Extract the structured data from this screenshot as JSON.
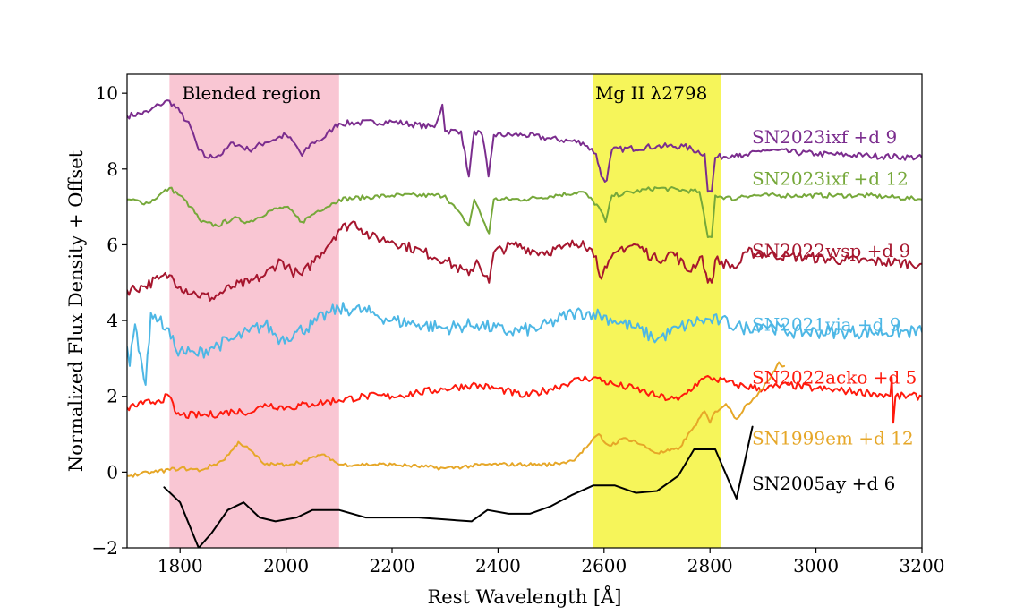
{
  "chart_data": {
    "type": "line",
    "title": "",
    "xlabel": "Rest Wavelength [Å]",
    "ylabel": "Normalized Flux Density + Offset",
    "xlim": [
      1700,
      3200
    ],
    "ylim": [
      -2,
      10.5
    ],
    "xticks": [
      1800,
      2000,
      2200,
      2400,
      2600,
      2800,
      3000,
      3200
    ],
    "yticks": [
      -2,
      0,
      2,
      4,
      6,
      8,
      10
    ],
    "xtick_labels": [
      "1800",
      "2000",
      "2200",
      "2400",
      "2600",
      "2800",
      "3000",
      "3200"
    ],
    "ytick_labels": [
      "−2",
      "0",
      "2",
      "4",
      "6",
      "8",
      "10"
    ],
    "shaded_regions": [
      {
        "name": "blended",
        "x0": 1780,
        "x1": 2100,
        "color": "#f9c6d3",
        "label": "Blended region"
      },
      {
        "name": "mgii",
        "x0": 2580,
        "x1": 2820,
        "color": "#f6f55a",
        "label": "Mg II λ2798"
      }
    ],
    "series": [
      {
        "name": "SN2023ixf +d 9",
        "color": "#7b2d8e",
        "label_y": 8.85,
        "noise": 0.08,
        "points": [
          [
            1700,
            9.4
          ],
          [
            1740,
            9.5
          ],
          [
            1760,
            9.7
          ],
          [
            1780,
            9.8
          ],
          [
            1800,
            9.5
          ],
          [
            1820,
            9.1
          ],
          [
            1835,
            8.5
          ],
          [
            1850,
            8.3
          ],
          [
            1880,
            8.4
          ],
          [
            1900,
            8.7
          ],
          [
            1930,
            8.5
          ],
          [
            1960,
            8.7
          ],
          [
            2000,
            8.9
          ],
          [
            2020,
            8.6
          ],
          [
            2030,
            8.35
          ],
          [
            2050,
            8.7
          ],
          [
            2070,
            8.8
          ],
          [
            2090,
            9.1
          ],
          [
            2100,
            9.2
          ],
          [
            2200,
            9.25
          ],
          [
            2280,
            9.1
          ],
          [
            2295,
            9.7
          ],
          [
            2300,
            9.0
          ],
          [
            2330,
            9.0
          ],
          [
            2345,
            7.8
          ],
          [
            2355,
            9.0
          ],
          [
            2370,
            8.9
          ],
          [
            2382,
            7.8
          ],
          [
            2392,
            8.9
          ],
          [
            2450,
            8.9
          ],
          [
            2500,
            8.8
          ],
          [
            2560,
            8.7
          ],
          [
            2585,
            8.4
          ],
          [
            2595,
            7.8
          ],
          [
            2605,
            7.7
          ],
          [
            2615,
            8.5
          ],
          [
            2700,
            8.6
          ],
          [
            2750,
            8.6
          ],
          [
            2790,
            8.4
          ],
          [
            2796,
            7.4
          ],
          [
            2803,
            7.4
          ],
          [
            2810,
            8.3
          ],
          [
            2850,
            8.4
          ],
          [
            2860,
            8.3
          ],
          [
            2900,
            8.5
          ],
          [
            3000,
            8.4
          ],
          [
            3100,
            8.35
          ],
          [
            3200,
            8.3
          ]
        ]
      },
      {
        "name": "SN2023ixf +d 12",
        "color": "#76a83a",
        "label_y": 7.75,
        "noise": 0.06,
        "points": [
          [
            1700,
            7.2
          ],
          [
            1740,
            7.1
          ],
          [
            1760,
            7.3
          ],
          [
            1780,
            7.5
          ],
          [
            1800,
            7.3
          ],
          [
            1820,
            7.0
          ],
          [
            1840,
            6.6
          ],
          [
            1870,
            6.5
          ],
          [
            1900,
            6.7
          ],
          [
            1930,
            6.6
          ],
          [
            1970,
            6.9
          ],
          [
            2000,
            7.0
          ],
          [
            2030,
            6.6
          ],
          [
            2060,
            6.9
          ],
          [
            2090,
            7.1
          ],
          [
            2100,
            7.2
          ],
          [
            2200,
            7.3
          ],
          [
            2300,
            7.3
          ],
          [
            2345,
            6.5
          ],
          [
            2355,
            7.2
          ],
          [
            2383,
            6.3
          ],
          [
            2392,
            7.2
          ],
          [
            2450,
            7.2
          ],
          [
            2560,
            7.4
          ],
          [
            2590,
            7.0
          ],
          [
            2603,
            6.6
          ],
          [
            2615,
            7.3
          ],
          [
            2700,
            7.5
          ],
          [
            2780,
            7.4
          ],
          [
            2796,
            6.2
          ],
          [
            2803,
            6.2
          ],
          [
            2810,
            7.3
          ],
          [
            2850,
            7.2
          ],
          [
            2860,
            7.3
          ],
          [
            2950,
            7.3
          ],
          [
            3100,
            7.3
          ],
          [
            3200,
            7.2
          ]
        ]
      },
      {
        "name": "SN2022wsp +d 9",
        "color": "#a6162e",
        "label_y": 5.85,
        "noise": 0.14,
        "points": [
          [
            1700,
            4.8
          ],
          [
            1730,
            4.9
          ],
          [
            1760,
            5.1
          ],
          [
            1780,
            5.2
          ],
          [
            1800,
            4.9
          ],
          [
            1830,
            4.7
          ],
          [
            1860,
            4.6
          ],
          [
            1900,
            4.9
          ],
          [
            1930,
            5.0
          ],
          [
            1960,
            5.2
          ],
          [
            1990,
            5.6
          ],
          [
            2010,
            5.3
          ],
          [
            2030,
            5.2
          ],
          [
            2060,
            5.7
          ],
          [
            2090,
            6.2
          ],
          [
            2100,
            6.4
          ],
          [
            2130,
            6.6
          ],
          [
            2160,
            6.2
          ],
          [
            2200,
            6.1
          ],
          [
            2260,
            5.8
          ],
          [
            2300,
            5.6
          ],
          [
            2345,
            5.2
          ],
          [
            2360,
            5.6
          ],
          [
            2383,
            5.0
          ],
          [
            2392,
            5.8
          ],
          [
            2430,
            6.0
          ],
          [
            2480,
            5.8
          ],
          [
            2520,
            5.9
          ],
          [
            2560,
            6.1
          ],
          [
            2585,
            5.7
          ],
          [
            2595,
            5.1
          ],
          [
            2605,
            5.4
          ],
          [
            2630,
            5.9
          ],
          [
            2660,
            6.0
          ],
          [
            2700,
            5.6
          ],
          [
            2730,
            5.8
          ],
          [
            2760,
            5.3
          ],
          [
            2785,
            5.7
          ],
          [
            2796,
            5.0
          ],
          [
            2803,
            5.0
          ],
          [
            2810,
            5.6
          ],
          [
            2850,
            5.4
          ],
          [
            2870,
            5.8
          ],
          [
            2950,
            5.7
          ],
          [
            3050,
            5.6
          ],
          [
            3200,
            5.5
          ]
        ]
      },
      {
        "name": "SN2021yja +d 9",
        "color": "#4db7e5",
        "label_y": 3.9,
        "noise": 0.18,
        "points": [
          [
            1700,
            3.3
          ],
          [
            1705,
            2.8
          ],
          [
            1715,
            3.9
          ],
          [
            1725,
            3.1
          ],
          [
            1735,
            2.3
          ],
          [
            1745,
            4.2
          ],
          [
            1760,
            4.0
          ],
          [
            1775,
            3.8
          ],
          [
            1790,
            3.3
          ],
          [
            1800,
            3.2
          ],
          [
            1830,
            3.1
          ],
          [
            1860,
            3.3
          ],
          [
            1900,
            3.5
          ],
          [
            1930,
            3.7
          ],
          [
            1960,
            3.9
          ],
          [
            1990,
            3.5
          ],
          [
            2020,
            3.7
          ],
          [
            2050,
            3.9
          ],
          [
            2080,
            4.2
          ],
          [
            2100,
            4.3
          ],
          [
            2130,
            4.3
          ],
          [
            2160,
            4.2
          ],
          [
            2200,
            4.0
          ],
          [
            2250,
            3.9
          ],
          [
            2300,
            3.8
          ],
          [
            2360,
            3.9
          ],
          [
            2420,
            3.7
          ],
          [
            2480,
            3.8
          ],
          [
            2540,
            4.2
          ],
          [
            2580,
            4.2
          ],
          [
            2620,
            4.0
          ],
          [
            2660,
            3.8
          ],
          [
            2700,
            3.5
          ],
          [
            2740,
            3.8
          ],
          [
            2780,
            4.0
          ],
          [
            2820,
            4.0
          ],
          [
            2860,
            3.8
          ],
          [
            2900,
            3.9
          ],
          [
            2950,
            3.7
          ],
          [
            3050,
            3.7
          ],
          [
            3200,
            3.7
          ]
        ]
      },
      {
        "name": "SN2022acko +d 5",
        "color": "#ff1a0d",
        "label_y": 2.5,
        "noise": 0.1,
        "points": [
          [
            1700,
            1.7
          ],
          [
            1730,
            1.8
          ],
          [
            1760,
            1.9
          ],
          [
            1780,
            2.0
          ],
          [
            1790,
            1.6
          ],
          [
            1800,
            1.5
          ],
          [
            1850,
            1.5
          ],
          [
            1900,
            1.6
          ],
          [
            1940,
            1.6
          ],
          [
            1960,
            1.8
          ],
          [
            2000,
            1.7
          ],
          [
            2050,
            1.8
          ],
          [
            2100,
            1.9
          ],
          [
            2150,
            2.0
          ],
          [
            2200,
            2.0
          ],
          [
            2250,
            2.1
          ],
          [
            2300,
            2.2
          ],
          [
            2350,
            2.3
          ],
          [
            2400,
            2.2
          ],
          [
            2450,
            2.0
          ],
          [
            2500,
            2.2
          ],
          [
            2540,
            2.4
          ],
          [
            2580,
            2.5
          ],
          [
            2620,
            2.3
          ],
          [
            2660,
            2.2
          ],
          [
            2700,
            2.0
          ],
          [
            2740,
            1.9
          ],
          [
            2780,
            2.4
          ],
          [
            2800,
            2.5
          ],
          [
            2850,
            2.3
          ],
          [
            2900,
            2.2
          ],
          [
            2950,
            2.3
          ],
          [
            3000,
            2.2
          ],
          [
            3100,
            2.1
          ],
          [
            3140,
            2.0
          ],
          [
            3143,
            2.5
          ],
          [
            3146,
            1.3
          ],
          [
            3150,
            2.0
          ],
          [
            3200,
            2.0
          ]
        ]
      },
      {
        "name": "SN1999em +d 12",
        "color": "#e6a728",
        "label_y": 0.9,
        "noise": 0.05,
        "points": [
          [
            1700,
            -0.1
          ],
          [
            1750,
            0.0
          ],
          [
            1800,
            0.1
          ],
          [
            1840,
            0.05
          ],
          [
            1880,
            0.3
          ],
          [
            1900,
            0.6
          ],
          [
            1910,
            0.8
          ],
          [
            1930,
            0.6
          ],
          [
            1960,
            0.2
          ],
          [
            2000,
            0.2
          ],
          [
            2040,
            0.3
          ],
          [
            2060,
            0.45
          ],
          [
            2080,
            0.4
          ],
          [
            2100,
            0.2
          ],
          [
            2200,
            0.2
          ],
          [
            2300,
            0.1
          ],
          [
            2380,
            0.2
          ],
          [
            2450,
            0.2
          ],
          [
            2500,
            0.2
          ],
          [
            2540,
            0.3
          ],
          [
            2570,
            0.7
          ],
          [
            2590,
            1.0
          ],
          [
            2600,
            0.8
          ],
          [
            2610,
            0.7
          ],
          [
            2640,
            0.9
          ],
          [
            2660,
            0.8
          ],
          [
            2700,
            0.5
          ],
          [
            2740,
            0.6
          ],
          [
            2770,
            1.2
          ],
          [
            2790,
            1.6
          ],
          [
            2800,
            1.3
          ],
          [
            2810,
            1.6
          ],
          [
            2830,
            1.8
          ],
          [
            2850,
            1.4
          ],
          [
            2870,
            1.8
          ],
          [
            2900,
            2.2
          ],
          [
            2930,
            2.9
          ],
          [
            2940,
            2.8
          ]
        ]
      },
      {
        "name": "SN2005ay +d 6",
        "color": "#000000",
        "label_y": -0.3,
        "noise": 0.0,
        "points": [
          [
            1770,
            -0.4
          ],
          [
            1800,
            -0.8
          ],
          [
            1835,
            -2.0
          ],
          [
            1860,
            -1.6
          ],
          [
            1890,
            -1.0
          ],
          [
            1920,
            -0.8
          ],
          [
            1950,
            -1.2
          ],
          [
            1980,
            -1.3
          ],
          [
            2020,
            -1.2
          ],
          [
            2050,
            -1.0
          ],
          [
            2100,
            -1.0
          ],
          [
            2150,
            -1.2
          ],
          [
            2200,
            -1.2
          ],
          [
            2250,
            -1.2
          ],
          [
            2300,
            -1.25
          ],
          [
            2350,
            -1.3
          ],
          [
            2380,
            -1.0
          ],
          [
            2420,
            -1.1
          ],
          [
            2460,
            -1.1
          ],
          [
            2500,
            -0.9
          ],
          [
            2540,
            -0.6
          ],
          [
            2580,
            -0.35
          ],
          [
            2620,
            -0.35
          ],
          [
            2660,
            -0.55
          ],
          [
            2700,
            -0.5
          ],
          [
            2740,
            -0.1
          ],
          [
            2770,
            0.6
          ],
          [
            2810,
            0.6
          ],
          [
            2850,
            -0.7
          ],
          [
            2880,
            1.2
          ]
        ]
      }
    ]
  }
}
